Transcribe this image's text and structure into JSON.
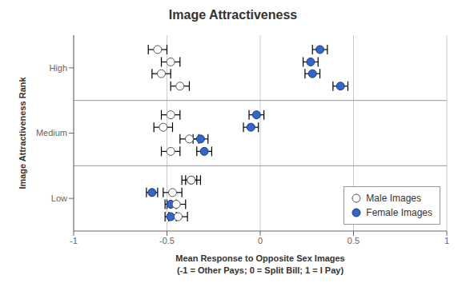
{
  "chart_data": {
    "type": "scatter",
    "title": "Image Attractiveness",
    "xlabel": "Mean Response to Opposite Sex Images\n(-1 = Other Pays; 0 = Split Bill; 1 = I Pay)",
    "ylabel": "Image Attractiveness Rank",
    "categories": [
      "Low",
      "Medium",
      "High"
    ],
    "series": [
      {
        "name": "Male Images",
        "color": "white",
        "values": [
          [
            -0.37,
            -0.47,
            -0.45,
            -0.44
          ],
          [
            -0.48,
            -0.52,
            -0.38,
            -0.48
          ],
          [
            -0.55,
            -0.48,
            -0.53,
            -0.43
          ]
        ],
        "errors": [
          [
            0.05,
            0.05,
            0.05,
            0.05
          ],
          [
            0.05,
            0.05,
            0.05,
            0.05
          ],
          [
            0.05,
            0.05,
            0.05,
            0.05
          ]
        ]
      },
      {
        "name": "Female Images",
        "color": "#3366cc",
        "values": [
          [
            -0.37,
            -0.58,
            -0.48,
            -0.48
          ],
          [
            -0.02,
            -0.05,
            -0.32,
            -0.3
          ],
          [
            0.32,
            0.27,
            0.28,
            0.43
          ]
        ],
        "errors": [
          [
            0.03,
            0.03,
            0.03,
            0.03
          ],
          [
            0.04,
            0.04,
            0.04,
            0.04
          ],
          [
            0.04,
            0.04,
            0.04,
            0.04
          ]
        ]
      }
    ],
    "xlim": [
      -1,
      1
    ],
    "xticks": [
      -1,
      -0.5,
      0,
      0.5,
      1
    ],
    "grid": true,
    "legend": "lower right",
    "marker": "circle"
  }
}
